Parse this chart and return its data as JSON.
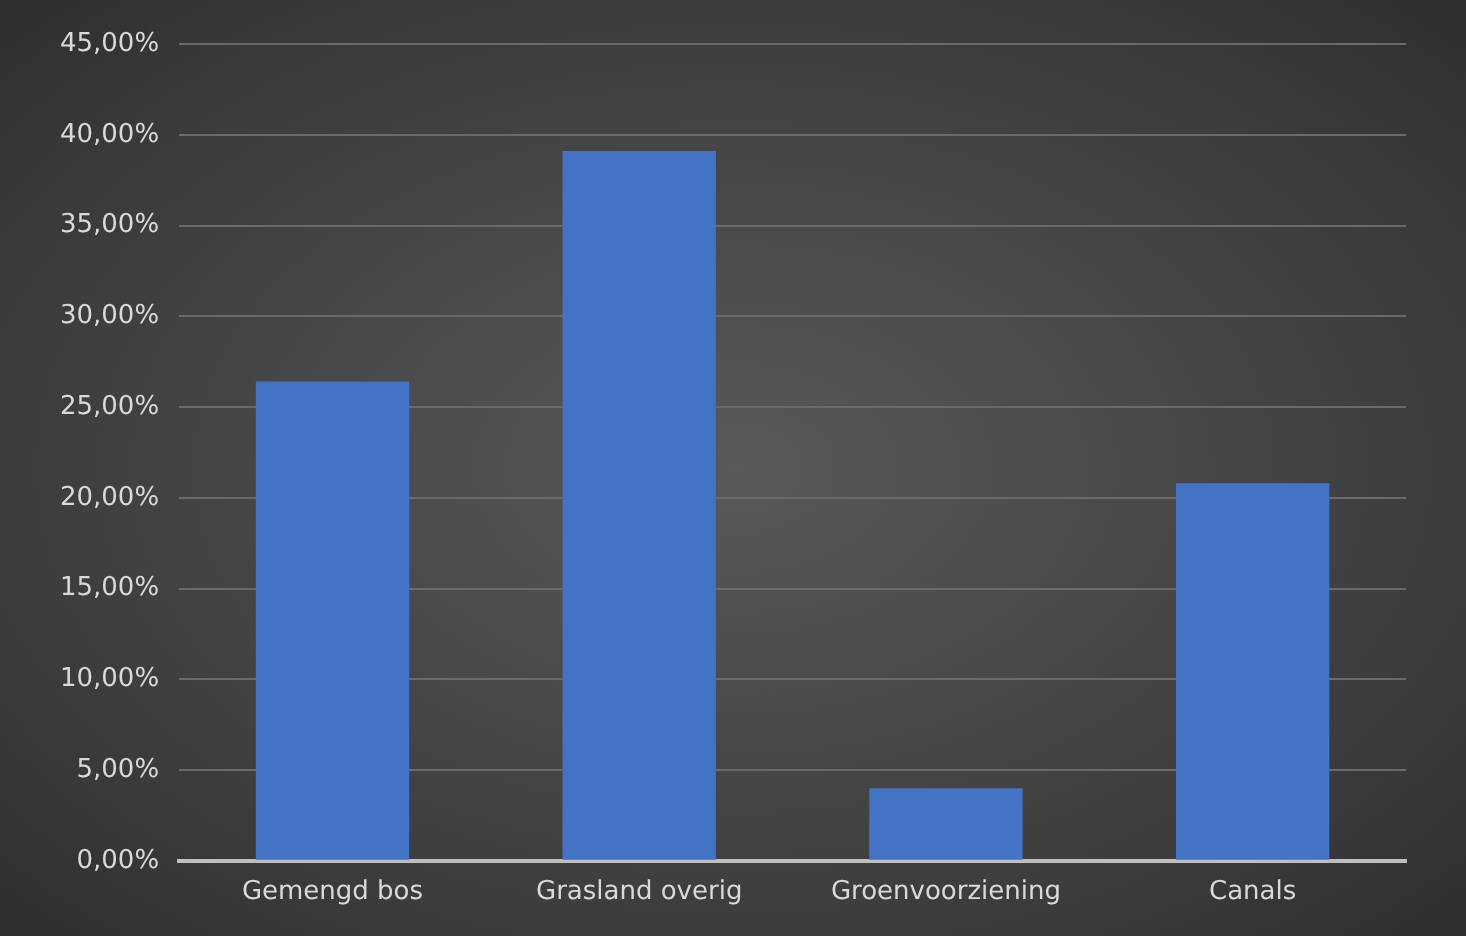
{
  "chart_data": {
    "type": "bar",
    "categories": [
      "Gemengd bos",
      "Grasland overig",
      "Groenvoorziening",
      "Canals"
    ],
    "values": [
      26.4,
      39.1,
      4.0,
      20.8
    ],
    "color": "#4472c4",
    "ylim": [
      0,
      45
    ],
    "yticks": [
      {
        "value": 0,
        "label": "0,00%"
      },
      {
        "value": 5,
        "label": "5,00%"
      },
      {
        "value": 10,
        "label": "10,00%"
      },
      {
        "value": 15,
        "label": "15,00%"
      },
      {
        "value": 20,
        "label": "20,00%"
      },
      {
        "value": 25,
        "label": "25,00%"
      },
      {
        "value": 30,
        "label": "30,00%"
      },
      {
        "value": 35,
        "label": "35,00%"
      },
      {
        "value": 40,
        "label": "40,00%"
      },
      {
        "value": 45,
        "label": "45,00%"
      }
    ],
    "grid": "y"
  }
}
